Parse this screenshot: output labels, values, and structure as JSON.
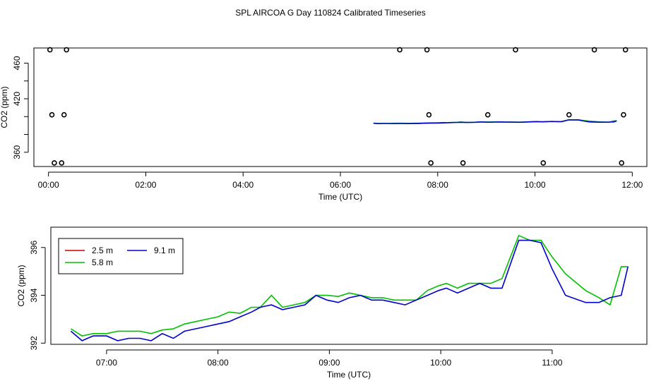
{
  "title": "SPL AIRCOA G  Day 110824  Calibrated Timeseries",
  "chart_data": [
    {
      "type": "scatter",
      "xlabel": "Time (UTC)",
      "ylabel": "CO2 (ppm)",
      "xlim": [
        -0.3,
        12.3
      ],
      "ylim": [
        344,
        477
      ],
      "xticks": [
        0,
        2,
        4,
        6,
        8,
        10,
        12
      ],
      "xtick_labels": [
        "00:00",
        "02:00",
        "04:00",
        "06:00",
        "08:00",
        "10:00",
        "12:00"
      ],
      "yticks": [
        360,
        380,
        400,
        420,
        440,
        460
      ],
      "ytick_labels": [
        "360",
        "",
        "",
        "420",
        "",
        "460"
      ],
      "outlier_points": {
        "x": [
          0.03,
          0.07,
          0.12,
          0.27,
          0.32,
          0.37,
          7.22,
          7.78,
          7.82,
          7.86,
          8.52,
          9.03,
          9.6,
          10.17,
          10.7,
          11.22,
          11.78,
          11.82,
          11.86
        ],
        "y": [
          475,
          402,
          348,
          348,
          402,
          475,
          475,
          475,
          402,
          348,
          348,
          402,
          475,
          348,
          402,
          475,
          348,
          402,
          475
        ]
      },
      "line_colors": {
        "5.8 m": "#00c000",
        "9.1 m": "#0000cc"
      }
    },
    {
      "type": "line",
      "xlabel": "Time (UTC)",
      "ylabel": "CO2 (ppm)",
      "xlim": [
        6.5,
        11.85
      ],
      "ylim": [
        391.95,
        396.85
      ],
      "xticks": [
        7,
        8,
        9,
        10,
        11
      ],
      "xtick_labels": [
        "07:00",
        "08:00",
        "09:00",
        "10:00",
        "11:00"
      ],
      "yticks": [
        392,
        394,
        396
      ],
      "ytick_labels": [
        "392",
        "394",
        "396"
      ],
      "legend": {
        "position": "top-left",
        "entries": [
          "2.5 m",
          "9.1 m",
          "5.8 m"
        ]
      },
      "series": [
        {
          "name": "2.5 m",
          "color": "#cc0000",
          "x": [],
          "values": []
        },
        {
          "name": "5.8 m",
          "color": "#00c000",
          "x": [
            6.68,
            6.78,
            6.88,
            7.0,
            7.1,
            7.2,
            7.3,
            7.4,
            7.5,
            7.6,
            7.7,
            7.8,
            7.9,
            8.0,
            8.1,
            8.2,
            8.3,
            8.38,
            8.48,
            8.58,
            8.68,
            8.78,
            8.88,
            8.98,
            9.08,
            9.18,
            9.28,
            9.38,
            9.48,
            9.58,
            9.68,
            9.78,
            9.88,
            9.98,
            10.05,
            10.15,
            10.25,
            10.35,
            10.45,
            10.55,
            10.7,
            10.8,
            10.9,
            11.0,
            11.12,
            11.3,
            11.42,
            11.52,
            11.62,
            11.68
          ],
          "values": [
            392.6,
            392.3,
            392.4,
            392.4,
            392.5,
            392.5,
            392.5,
            392.4,
            392.55,
            392.6,
            392.8,
            392.9,
            393.0,
            393.1,
            393.3,
            393.25,
            393.5,
            393.5,
            394.0,
            393.5,
            393.6,
            393.7,
            394.0,
            394.0,
            393.95,
            394.1,
            394.0,
            393.9,
            393.9,
            393.8,
            393.8,
            393.8,
            394.2,
            394.4,
            394.5,
            394.3,
            394.5,
            394.5,
            394.5,
            394.7,
            396.5,
            396.3,
            396.3,
            395.6,
            394.9,
            394.2,
            393.9,
            393.6,
            395.2,
            395.2
          ]
        },
        {
          "name": "9.1 m",
          "color": "#0000cc",
          "x": [
            6.68,
            6.78,
            6.88,
            7.0,
            7.1,
            7.2,
            7.3,
            7.4,
            7.5,
            7.6,
            7.7,
            7.8,
            7.9,
            8.0,
            8.1,
            8.2,
            8.3,
            8.38,
            8.48,
            8.58,
            8.68,
            8.78,
            8.88,
            8.98,
            9.08,
            9.18,
            9.28,
            9.38,
            9.48,
            9.58,
            9.68,
            9.78,
            9.88,
            9.98,
            10.05,
            10.15,
            10.25,
            10.35,
            10.45,
            10.55,
            10.7,
            10.8,
            10.9,
            11.0,
            11.12,
            11.3,
            11.42,
            11.52,
            11.62,
            11.68
          ],
          "values": [
            392.5,
            392.1,
            392.3,
            392.3,
            392.1,
            392.2,
            392.2,
            392.1,
            392.4,
            392.2,
            392.5,
            392.6,
            392.7,
            392.8,
            392.9,
            393.1,
            393.3,
            393.5,
            393.6,
            393.4,
            393.5,
            393.6,
            394.0,
            393.8,
            393.7,
            393.9,
            394.0,
            393.8,
            393.8,
            393.7,
            393.6,
            393.8,
            394.0,
            394.2,
            394.3,
            394.1,
            394.3,
            394.5,
            394.3,
            394.3,
            396.3,
            396.3,
            396.2,
            395.1,
            394.0,
            393.7,
            393.7,
            393.9,
            394.0,
            395.2
          ]
        }
      ]
    }
  ]
}
